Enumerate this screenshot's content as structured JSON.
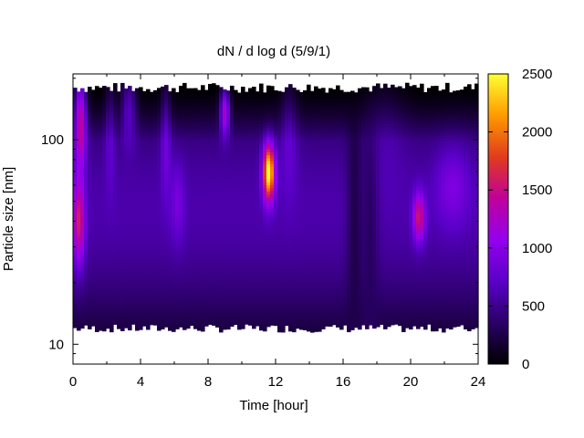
{
  "chart_data": {
    "type": "heatmap",
    "title": "dN / d log d (5/9/1)",
    "xlabel": "Time [hour]",
    "ylabel": "Particle size [nm]",
    "xlim": [
      0,
      24
    ],
    "x_ticks": [
      0,
      4,
      8,
      12,
      16,
      20,
      24
    ],
    "y_scale": "log",
    "y_ticks": [
      10,
      100
    ],
    "ylim": [
      8,
      210
    ],
    "measured_size_range_nm": [
      12,
      180
    ],
    "colorbar": {
      "range": [
        0,
        2500
      ],
      "ticks": [
        0,
        500,
        1000,
        1500,
        2000,
        2500
      ],
      "colormap": [
        "#000000",
        "#2a0066",
        "#5a00c8",
        "#9400ee",
        "#c0009a",
        "#e13c1c",
        "#ff9a00",
        "#ffff33"
      ]
    },
    "background_level": 550,
    "hotspots": [
      {
        "t": 0.45,
        "d": 130,
        "peak": 1650,
        "wt": 0.35,
        "wd": 0.22
      },
      {
        "t": 0.35,
        "d": 40,
        "peak": 1450,
        "wt": 0.35,
        "wd": 0.22
      },
      {
        "t": 2.2,
        "d": 120,
        "peak": 750,
        "wt": 0.3,
        "wd": 0.3
      },
      {
        "t": 3.3,
        "d": 150,
        "peak": 1000,
        "wt": 0.45,
        "wd": 0.18
      },
      {
        "t": 5.5,
        "d": 110,
        "peak": 850,
        "wt": 0.3,
        "wd": 0.3
      },
      {
        "t": 6.2,
        "d": 50,
        "peak": 750,
        "wt": 0.4,
        "wd": 0.2
      },
      {
        "t": 9.0,
        "d": 140,
        "peak": 1500,
        "wt": 0.3,
        "wd": 0.12
      },
      {
        "t": 11.6,
        "d": 70,
        "peak": 2450,
        "wt": 0.35,
        "wd": 0.14
      },
      {
        "t": 12.8,
        "d": 110,
        "peak": 750,
        "wt": 0.5,
        "wd": 0.3
      },
      {
        "t": 18.5,
        "d": 120,
        "peak": 600,
        "wt": 1.2,
        "wd": 0.3
      },
      {
        "t": 20.5,
        "d": 42,
        "peak": 1400,
        "wt": 0.35,
        "wd": 0.12
      },
      {
        "t": 22.5,
        "d": 60,
        "peak": 800,
        "wt": 1.0,
        "wd": 0.2
      }
    ],
    "dim_bands": [
      {
        "t": 16.7,
        "width": 0.5,
        "level": 260
      },
      {
        "t": 17.6,
        "width": 0.5,
        "level": 330
      }
    ]
  }
}
